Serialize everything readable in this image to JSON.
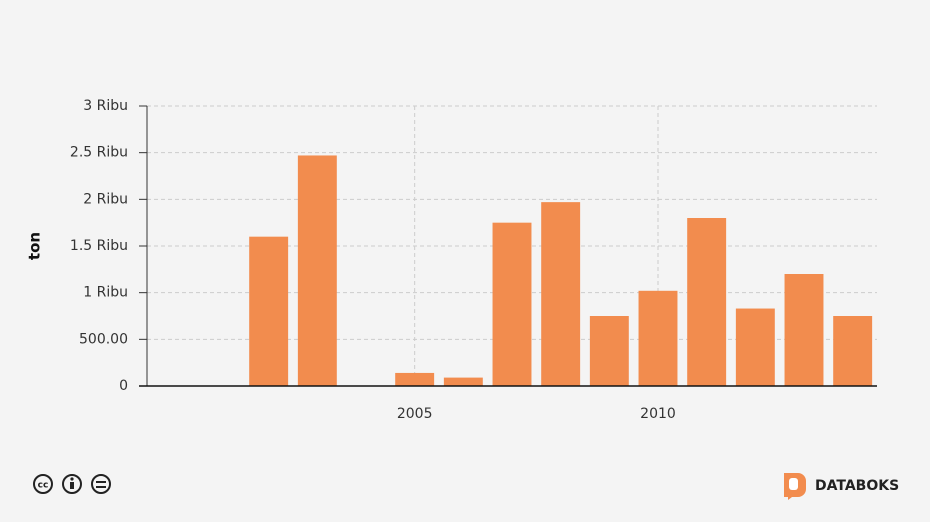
{
  "chart_data": {
    "type": "bar",
    "y_label": "ton",
    "x": [
      2002,
      2003,
      2005,
      2006,
      2007,
      2008,
      2009,
      2010,
      2011,
      2012,
      2013,
      2014
    ],
    "values": [
      1600,
      2470,
      140,
      90,
      1750,
      1970,
      750,
      1020,
      1800,
      830,
      1200,
      750
    ],
    "color": "#f28c4e",
    "xlim": [
      1999.5,
      2014.5
    ],
    "xticks": [
      2005,
      2010
    ],
    "ylim": [
      0,
      3000
    ],
    "yticks": [
      0,
      {
        "value": 500,
        "label": "500.00"
      },
      {
        "value": 1000,
        "label": "1 Ribu"
      },
      {
        "value": 1500,
        "label": "1.5 Ribu"
      },
      {
        "value": 2000,
        "label": "2 Ribu"
      },
      {
        "value": 2500,
        "label": "2.5 Ribu"
      },
      {
        "value": 3000,
        "label": "3 Ribu"
      }
    ],
    "grid": true
  },
  "brand": "DATABOKS"
}
